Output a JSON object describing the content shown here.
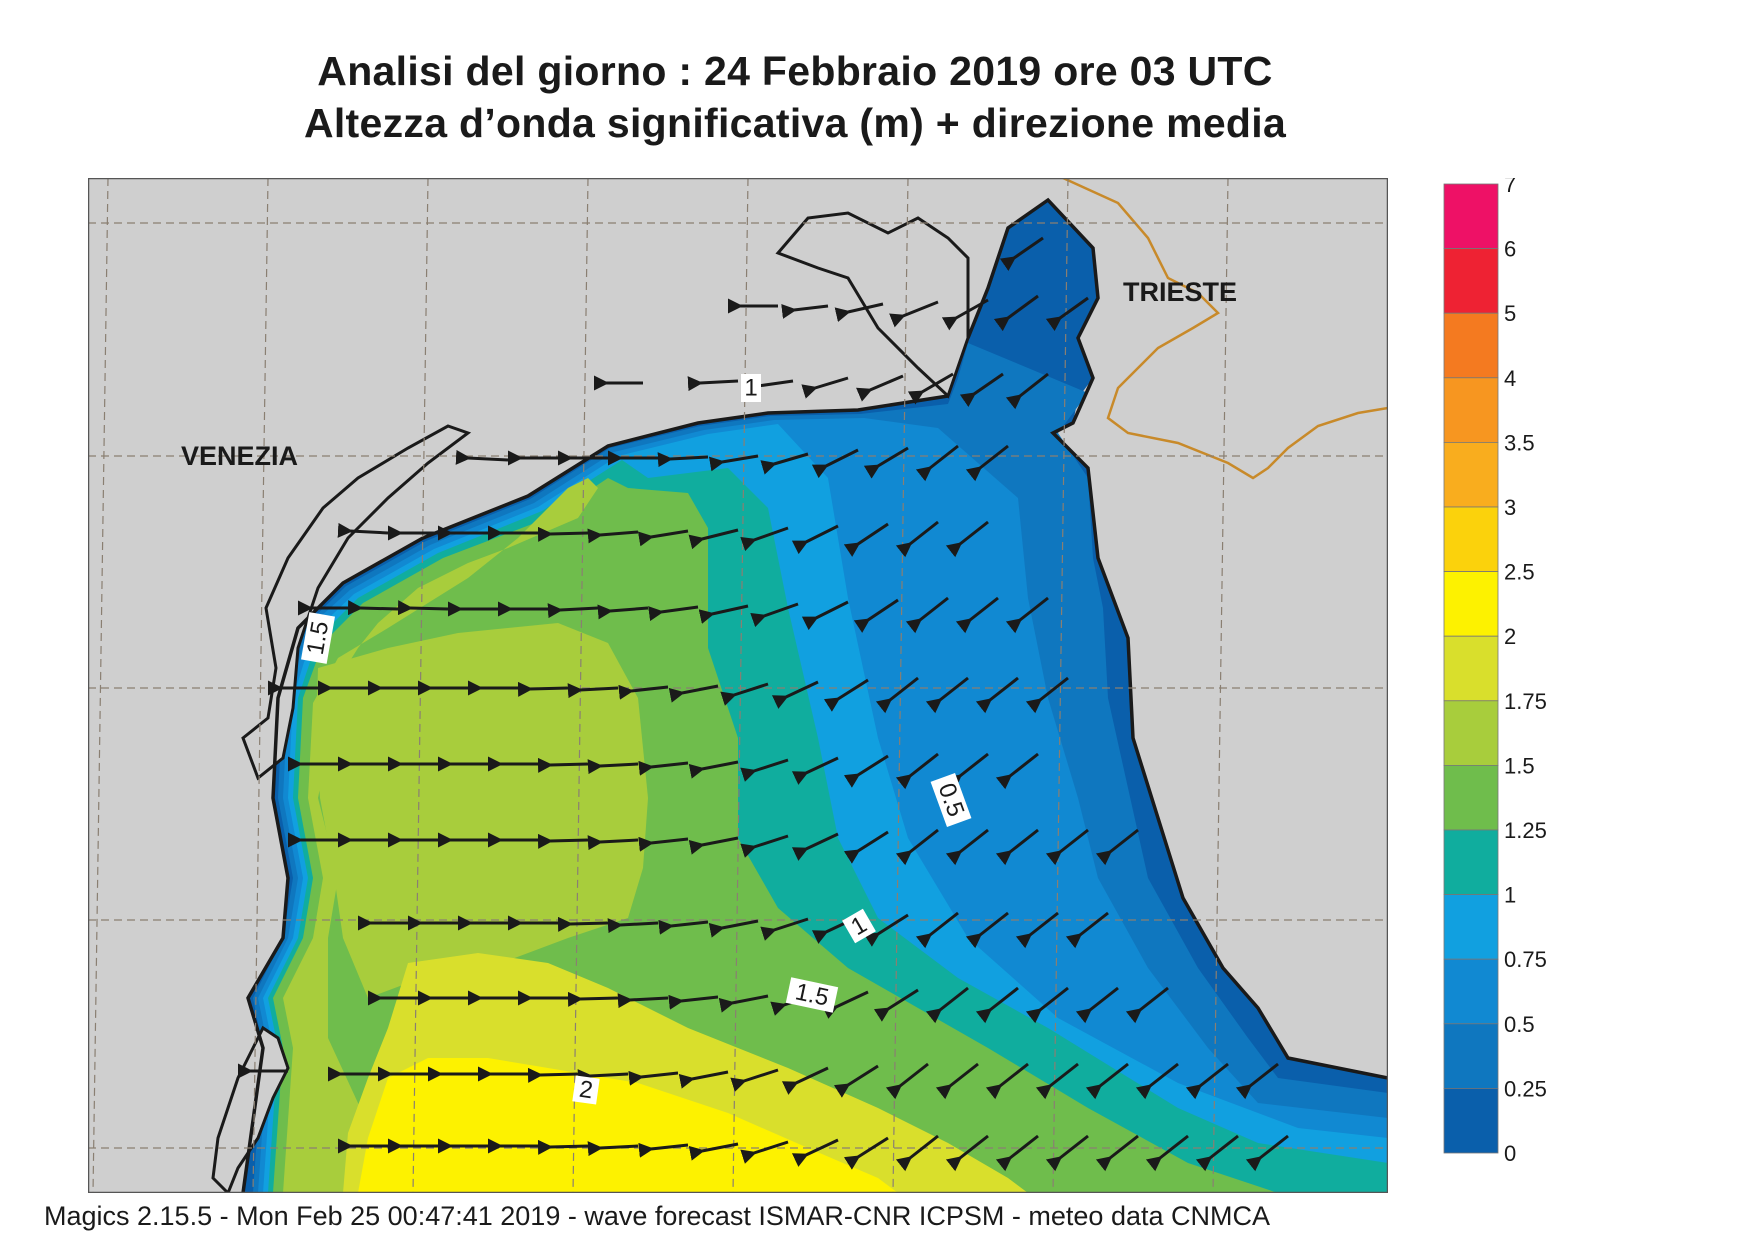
{
  "header": {
    "title": "Analisi del giorno :  24  Febbraio 2019    ore 03 UTC",
    "subtitle": "Altezza d’onda significativa (m) + direzione media"
  },
  "map": {
    "cities": [
      "VENEZIA",
      "TRIESTE"
    ],
    "contour_labels": [
      "1",
      "1.5",
      "0.5",
      "1",
      "1.5",
      "2"
    ],
    "arrow_direction": "west (toward the Italian coast), south-west near the Istrian coast",
    "colors": {
      "land": "#cfcfcf",
      "coast": "#1a1a1a",
      "border": "#c88a2a",
      "grid": "#8a7f72"
    }
  },
  "legend": {
    "levels": [
      {
        "label": "7",
        "color": "#ee1166"
      },
      {
        "label": "6",
        "color": "#ee2233"
      },
      {
        "label": "5",
        "color": "#f47a20"
      },
      {
        "label": "4",
        "color": "#f79620"
      },
      {
        "label": "3.5",
        "color": "#f9ad1e"
      },
      {
        "label": "3",
        "color": "#fbd20c"
      },
      {
        "label": "2.5",
        "color": "#fdf200"
      },
      {
        "label": "2",
        "color": "#d9df2c"
      },
      {
        "label": "1.75",
        "color": "#a8cd3c"
      },
      {
        "label": "1.5",
        "color": "#6fbd4c"
      },
      {
        "label": "1.25",
        "color": "#10ad9e"
      },
      {
        "label": "1",
        "color": "#11a0e0"
      },
      {
        "label": "0.75",
        "color": "#1189d2"
      },
      {
        "label": "0.5",
        "color": "#0f77bf"
      },
      {
        "label": "0.25",
        "color": "#0a5fab"
      },
      {
        "label": "0",
        "color": ""
      }
    ]
  },
  "footer": {
    "text": "Magics 2.15.5 - Mon Feb 25 00:47:41 2019 - wave forecast  ISMAR-CNR  ICPSM - meteo data   CNMCA"
  }
}
